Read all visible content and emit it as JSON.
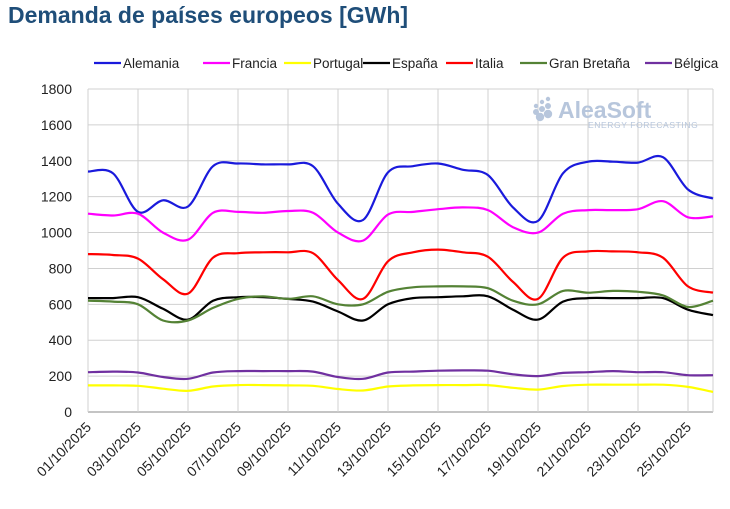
{
  "chart_data": {
    "type": "line",
    "title": "Demanda de países europeos [GWh]",
    "xlabel": "",
    "ylabel": "",
    "ylim": [
      0,
      1800
    ],
    "yticks": [
      0,
      200,
      400,
      600,
      800,
      1000,
      1200,
      1400,
      1600,
      1800
    ],
    "grid": "vertical and horizontal",
    "legend_position": "top",
    "x": [
      "01/10/2025",
      "02/10/2025",
      "03/10/2025",
      "04/10/2025",
      "05/10/2025",
      "06/10/2025",
      "07/10/2025",
      "08/10/2025",
      "09/10/2025",
      "10/10/2025",
      "11/10/2025",
      "12/10/2025",
      "13/10/2025",
      "14/10/2025",
      "15/10/2025",
      "16/10/2025",
      "17/10/2025",
      "18/10/2025",
      "19/10/2025",
      "20/10/2025",
      "21/10/2025",
      "22/10/2025",
      "23/10/2025",
      "24/10/2025",
      "25/10/2025",
      "26/10/2025"
    ],
    "xtick_labels": [
      "01/10/2025",
      "03/10/2025",
      "05/10/2025",
      "07/10/2025",
      "09/10/2025",
      "11/10/2025",
      "13/10/2025",
      "15/10/2025",
      "17/10/2025",
      "19/10/2025",
      "21/10/2025",
      "23/10/2025",
      "25/10/2025"
    ],
    "series": [
      {
        "name": "Alemania",
        "color": "#1a1adc",
        "values": [
          1340,
          1330,
          1115,
          1180,
          1145,
          1370,
          1385,
          1380,
          1380,
          1370,
          1160,
          1070,
          1335,
          1370,
          1385,
          1350,
          1320,
          1140,
          1065,
          1330,
          1395,
          1395,
          1390,
          1420,
          1240,
          1190
        ]
      },
      {
        "name": "Francia",
        "color": "#ff00ff",
        "values": [
          1105,
          1095,
          1105,
          1000,
          960,
          1110,
          1115,
          1110,
          1120,
          1110,
          1000,
          955,
          1100,
          1115,
          1130,
          1140,
          1125,
          1030,
          1000,
          1105,
          1125,
          1125,
          1130,
          1175,
          1085,
          1090
        ]
      },
      {
        "name": "Portugal",
        "color": "#ffff00",
        "values": [
          148,
          148,
          146,
          130,
          118,
          142,
          150,
          150,
          148,
          146,
          128,
          120,
          142,
          148,
          150,
          150,
          150,
          135,
          125,
          145,
          152,
          152,
          152,
          152,
          140,
          112
        ]
      },
      {
        "name": "España",
        "color": "#000000",
        "values": [
          635,
          635,
          640,
          575,
          515,
          620,
          640,
          640,
          630,
          615,
          560,
          510,
          600,
          635,
          640,
          645,
          645,
          570,
          515,
          615,
          635,
          635,
          635,
          635,
          570,
          540
        ]
      },
      {
        "name": "Italia",
        "color": "#ff0000",
        "values": [
          880,
          875,
          855,
          740,
          660,
          860,
          885,
          890,
          890,
          885,
          735,
          630,
          840,
          890,
          905,
          890,
          865,
          725,
          630,
          860,
          895,
          895,
          890,
          860,
          700,
          665
        ]
      },
      {
        "name": "Gran Bretaña",
        "color": "#548235",
        "values": [
          620,
          615,
          600,
          510,
          510,
          580,
          630,
          645,
          630,
          645,
          600,
          600,
          670,
          695,
          700,
          700,
          690,
          620,
          600,
          675,
          665,
          675,
          670,
          650,
          585,
          620
        ]
      },
      {
        "name": "Bélgica",
        "color": "#7030a0",
        "values": [
          222,
          225,
          220,
          195,
          185,
          220,
          228,
          228,
          228,
          225,
          195,
          185,
          220,
          225,
          230,
          232,
          230,
          210,
          200,
          218,
          222,
          228,
          222,
          222,
          205,
          205
        ]
      }
    ]
  },
  "logo": {
    "name": "AleaSoft",
    "tagline": "ENERGY FORECASTING"
  }
}
